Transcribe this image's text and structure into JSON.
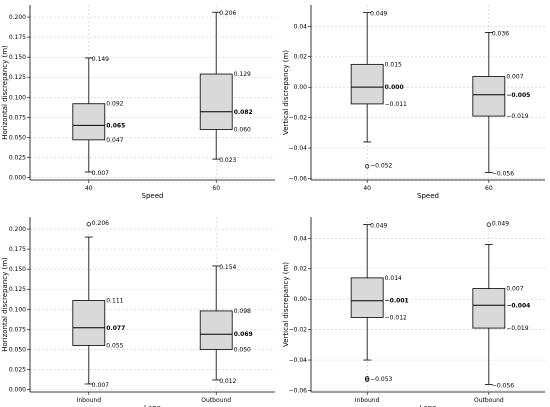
{
  "chart_data": [
    {
      "type": "box",
      "xlabel": "Speed",
      "ylabel": "Horizontal discrepancy (m)",
      "ylim": [
        -0.003,
        0.215
      ],
      "yticks": [
        "0.000",
        "0.025",
        "0.050",
        "0.075",
        "0.100",
        "0.125",
        "0.150",
        "0.175",
        "0.200"
      ],
      "grid": true,
      "categories": [
        "40",
        "60"
      ],
      "boxes": [
        {
          "category": "40",
          "whisker_low": 0.007,
          "q1": 0.047,
          "median": 0.065,
          "q3": 0.092,
          "whisker_high": 0.149,
          "outliers": [],
          "labels": {
            "whisker_low": "0.007",
            "q1": "0.047",
            "median": "0.065",
            "q3": "0.092",
            "whisker_high": "0.149"
          }
        },
        {
          "category": "60",
          "whisker_low": 0.023,
          "q1": 0.06,
          "median": 0.082,
          "q3": 0.129,
          "whisker_high": 0.206,
          "outliers": [],
          "labels": {
            "whisker_low": "0.023",
            "q1": "0.060",
            "median": "0.082",
            "q3": "0.129",
            "whisker_high": "0.206"
          }
        }
      ]
    },
    {
      "type": "box",
      "xlabel": "Speed",
      "ylabel": "Vertical discrepancy (m)",
      "ylim": [
        -0.061,
        0.054
      ],
      "yticks": [
        "−0.06",
        "−0.04",
        "−0.02",
        "0.00",
        "0.02",
        "0.04"
      ],
      "grid": true,
      "categories": [
        "40",
        "60"
      ],
      "boxes": [
        {
          "category": "40",
          "whisker_low": -0.036,
          "q1": -0.011,
          "median": 0.0,
          "q3": 0.015,
          "whisker_high": 0.049,
          "outliers": [
            -0.052
          ],
          "labels": {
            "outlier": "−0.052",
            "q1": "−0.011",
            "median": "0.000",
            "q3": "0.015",
            "whisker_high": "0.049"
          }
        },
        {
          "category": "60",
          "whisker_low": -0.056,
          "q1": -0.019,
          "median": -0.005,
          "q3": 0.007,
          "whisker_high": 0.036,
          "outliers": [],
          "labels": {
            "whisker_low": "−0.056",
            "q1": "−0.019",
            "median": "−0.005",
            "q3": "0.007",
            "whisker_high": "0.036"
          }
        }
      ]
    },
    {
      "type": "box",
      "xlabel": "Lane",
      "ylabel": "Horizontal discrepancy (m)",
      "ylim": [
        -0.003,
        0.215
      ],
      "yticks": [
        "0.000",
        "0.025",
        "0.050",
        "0.075",
        "0.100",
        "0.125",
        "0.150",
        "0.175",
        "0.200"
      ],
      "grid": true,
      "categories": [
        "Inbound",
        "Outbound"
      ],
      "boxes": [
        {
          "category": "Inbound",
          "whisker_low": 0.007,
          "q1": 0.055,
          "median": 0.077,
          "q3": 0.111,
          "whisker_high": 0.19,
          "outliers": [
            0.206
          ],
          "labels": {
            "whisker_low": "0.007",
            "q1": "0.055",
            "median": "0.077",
            "q3": "0.111",
            "outlier": "0.206"
          }
        },
        {
          "category": "Outbound",
          "whisker_low": 0.012,
          "q1": 0.05,
          "median": 0.069,
          "q3": 0.098,
          "whisker_high": 0.154,
          "outliers": [],
          "labels": {
            "whisker_low": "0.012",
            "q1": "0.050",
            "median": "0.069",
            "q3": "0.098",
            "whisker_high": "0.154"
          }
        }
      ]
    },
    {
      "type": "box",
      "xlabel": "Lane",
      "ylabel": "Vertical discrepancy (m)",
      "ylim": [
        -0.061,
        0.054
      ],
      "yticks": [
        "−0.06",
        "−0.04",
        "−0.02",
        "0.00",
        "0.02",
        "0.04"
      ],
      "grid": true,
      "categories": [
        "Inbound",
        "Outbound"
      ],
      "boxes": [
        {
          "category": "Inbound",
          "whisker_low": -0.04,
          "q1": -0.012,
          "median": -0.001,
          "q3": 0.014,
          "whisker_high": 0.049,
          "outliers": [
            -0.052,
            -0.053
          ],
          "labels": {
            "outlier": "−0.053",
            "q1": "−0.012",
            "median": "−0.001",
            "q3": "0.014",
            "whisker_high": "0.049"
          }
        },
        {
          "category": "Outbound",
          "whisker_low": -0.056,
          "q1": -0.019,
          "median": -0.004,
          "q3": 0.007,
          "whisker_high": 0.036,
          "outliers": [
            0.049
          ],
          "labels": {
            "whisker_low": "−0.056",
            "q1": "−0.019",
            "median": "−0.004",
            "q3": "0.007",
            "outlier": "0.049"
          }
        }
      ]
    }
  ]
}
